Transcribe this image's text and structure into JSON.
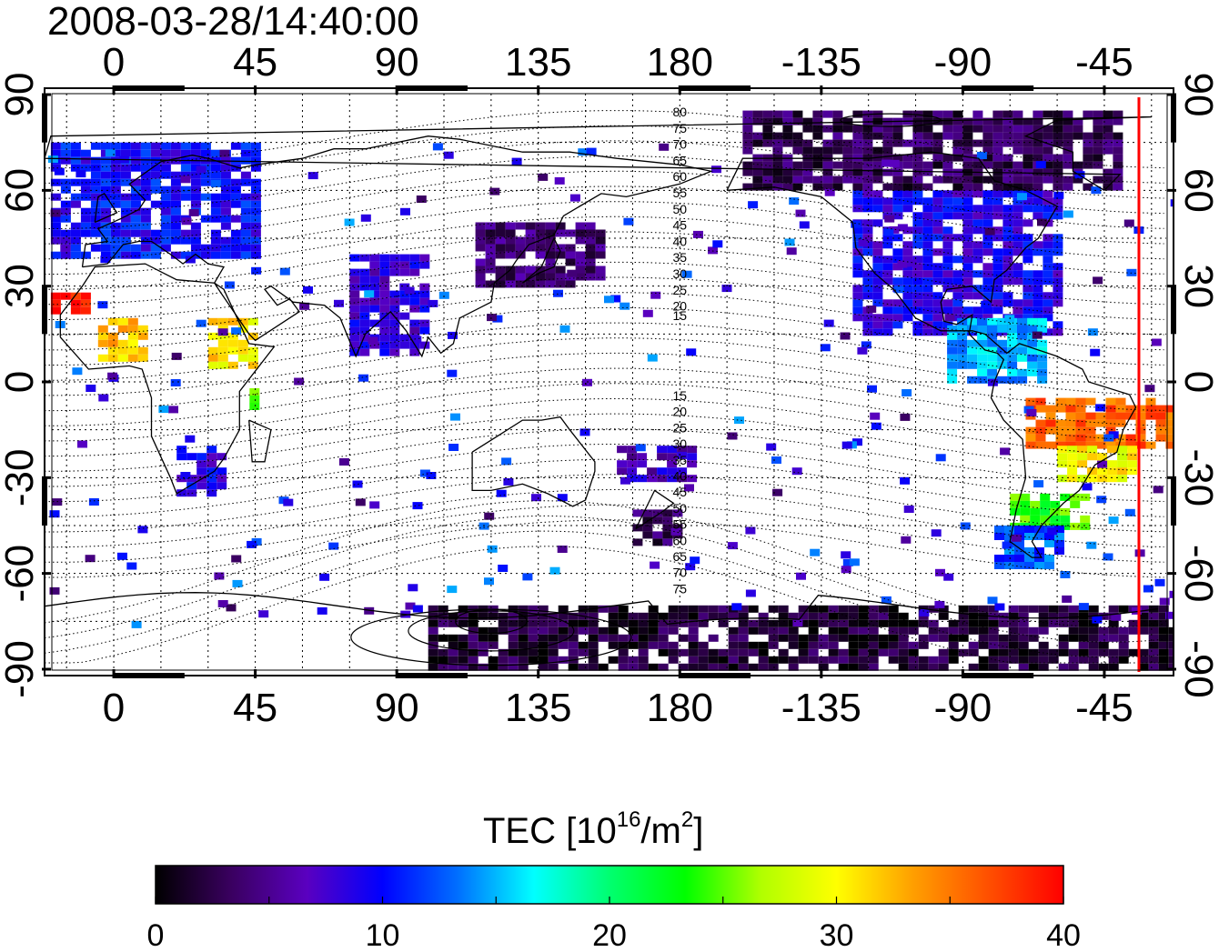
{
  "header": {
    "timestamp": "2008-03-28/14:40:00"
  },
  "map": {
    "lon_labels": [
      "0",
      "45",
      "90",
      "135",
      "180",
      "-135",
      "-90",
      "-45"
    ],
    "lon_values": [
      0,
      45,
      90,
      135,
      180,
      225,
      270,
      315
    ],
    "lat_labels": [
      "90",
      "60",
      "30",
      "0",
      "-30",
      "-60",
      "-90"
    ],
    "lat_values": [
      90,
      60,
      30,
      0,
      -30,
      -60,
      -90
    ],
    "lon_range": [
      -22,
      337
    ],
    "lat_range": [
      -92,
      92
    ],
    "contour_labels_north": [
      "80",
      "75",
      "70",
      "65",
      "60",
      "55",
      "50",
      "45",
      "40",
      "35",
      "30",
      "25",
      "20",
      "15"
    ],
    "contour_labels_south": [
      "15",
      "20",
      "25",
      "30",
      "35",
      "40",
      "45",
      "50",
      "55",
      "60",
      "65",
      "70",
      "75"
    ],
    "terminator_longitude": 326,
    "terminator_color": "#ff0000",
    "background": "#ffffff"
  },
  "colorbar": {
    "label": "TEC  [10",
    "label_exp": "16",
    "label_unit": "/m",
    "label_unit_exp": "2",
    "label_end": "]",
    "min": 0,
    "max": 40,
    "ticks": [
      "0",
      "10",
      "20",
      "30",
      "40"
    ],
    "colors": [
      "#000000",
      "#3a0060",
      "#5a00c0",
      "#0000ff",
      "#0070ff",
      "#00ffff",
      "#00ff70",
      "#00ff00",
      "#b0ff00",
      "#ffff00",
      "#ffa000",
      "#ff5000",
      "#ff0000"
    ]
  },
  "chart_data": {
    "type": "heatmap",
    "title": "2008-03-28/14:40:00",
    "xlabel": "",
    "ylabel": "",
    "xlim": [
      -22,
      337
    ],
    "ylim": [
      -90,
      90
    ],
    "colorbar_label": "TEC [10^16/m^2]",
    "colorbar_range": [
      0,
      40
    ],
    "regions": [
      {
        "lon": [
          -20,
          45
        ],
        "lat": [
          40,
          75
        ],
        "tec": 10
      },
      {
        "lon": [
          -20,
          -10
        ],
        "lat": [
          22,
          28
        ],
        "tec": 39
      },
      {
        "lon": [
          -5,
          10
        ],
        "lat": [
          8,
          20
        ],
        "tec": 32
      },
      {
        "lon": [
          30,
          45
        ],
        "lat": [
          5,
          20
        ],
        "tec": 31
      },
      {
        "lon": [
          40,
          45
        ],
        "lat": [
          -2,
          -8
        ],
        "tec": 24
      },
      {
        "lon": [
          20,
          35
        ],
        "lat": [
          -20,
          -35
        ],
        "tec": 9
      },
      {
        "lon": [
          75,
          100
        ],
        "lat": [
          10,
          40
        ],
        "tec": 8
      },
      {
        "lon": [
          115,
          155
        ],
        "lat": [
          30,
          50
        ],
        "tec": 4
      },
      {
        "lon": [
          160,
          185
        ],
        "lat": [
          -20,
          -30
        ],
        "tec": 7
      },
      {
        "lon": [
          165,
          180
        ],
        "lat": [
          -40,
          -50
        ],
        "tec": 3
      },
      {
        "lon": [
          235,
          300
        ],
        "lat": [
          15,
          60
        ],
        "tec": 9
      },
      {
        "lon": [
          200,
          320
        ],
        "lat": [
          60,
          85
        ],
        "tec": 3
      },
      {
        "lon": [
          265,
          295
        ],
        "lat": [
          0,
          20
        ],
        "tec": 15
      },
      {
        "lon": [
          290,
          335
        ],
        "lat": [
          -5,
          -20
        ],
        "tec": 36
      },
      {
        "lon": [
          300,
          325
        ],
        "lat": [
          -20,
          -30
        ],
        "tec": 30
      },
      {
        "lon": [
          285,
          310
        ],
        "lat": [
          -35,
          -45
        ],
        "tec": 24
      },
      {
        "lon": [
          280,
          300
        ],
        "lat": [
          -45,
          -58
        ],
        "tec": 12
      },
      {
        "lon": [
          100,
          337
        ],
        "lat": [
          -70,
          -90
        ],
        "tec": 2
      }
    ]
  }
}
